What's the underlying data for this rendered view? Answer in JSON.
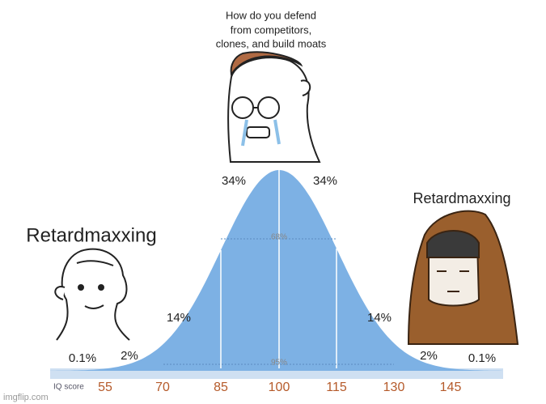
{
  "top_caption": {
    "lines": [
      "How do you defend",
      "from competitors,",
      "clones, and build moats"
    ]
  },
  "labels": {
    "left": "Retardmaxxing",
    "right": "Retardmaxxing"
  },
  "curve": {
    "left_pcts": [
      "0.1%",
      "2%",
      "14%",
      "34%"
    ],
    "right_pcts": [
      "34%",
      "14%",
      "2%",
      "0.1%"
    ],
    "inner": [
      "68%",
      "95%"
    ],
    "axis_label": "IQ score",
    "ticks": [
      "55",
      "70",
      "85",
      "100",
      "115",
      "130",
      "145"
    ]
  },
  "watermark": "imgflip.com"
}
